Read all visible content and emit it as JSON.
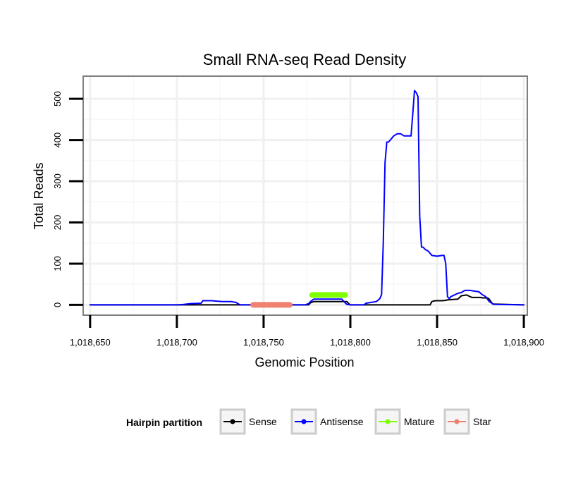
{
  "chart_data": {
    "type": "line",
    "title": "Small RNA-seq Read Density",
    "xlabel": "Genomic Position",
    "ylabel": "Total Reads",
    "xlim": [
      1018646,
      1018902
    ],
    "ylim": [
      -25,
      555
    ],
    "x_ticks": [
      1018650,
      1018700,
      1018750,
      1018800,
      1018850,
      1018900
    ],
    "x_tick_labels": [
      "1,018,650",
      "1,018,700",
      "1,018,750",
      "1,018,800",
      "1,018,850",
      "1,018,900"
    ],
    "y_ticks": [
      0,
      100,
      200,
      300,
      400,
      500
    ],
    "y_tick_labels": [
      "0",
      "100",
      "200",
      "300",
      "400",
      "500"
    ],
    "grid": true,
    "legend": {
      "title": "Hairpin partition",
      "placement": "bottom",
      "entries": [
        {
          "name": "Sense",
          "color": "#000000"
        },
        {
          "name": "Antisense",
          "color": "#0000ff"
        },
        {
          "name": "Mature",
          "color": "#7fff00"
        },
        {
          "name": "Star",
          "color": "#f08070"
        }
      ]
    },
    "series": [
      {
        "name": "Sense",
        "color": "#000000",
        "width": 2,
        "x": [
          1018650,
          1018776,
          1018777,
          1018779,
          1018798,
          1018799,
          1018800,
          1018846,
          1018847,
          1018849,
          1018853,
          1018855,
          1018856,
          1018862,
          1018864,
          1018867,
          1018868,
          1018870,
          1018875,
          1018876,
          1018879,
          1018880,
          1018881,
          1018882,
          1018900
        ],
        "y": [
          0,
          0,
          5,
          8,
          8,
          3,
          0,
          0,
          8,
          10,
          10,
          11,
          12,
          14,
          22,
          24,
          22,
          18,
          18,
          17,
          17,
          14,
          8,
          2,
          0
        ]
      },
      {
        "name": "Antisense",
        "color": "#0000ff",
        "width": 2,
        "x": [
          1018650,
          1018700,
          1018704,
          1018708,
          1018714,
          1018715,
          1018720,
          1018726,
          1018731,
          1018734,
          1018736,
          1018737,
          1018774,
          1018776,
          1018777,
          1018779,
          1018795,
          1018797,
          1018798,
          1018800,
          1018808,
          1018809,
          1018815,
          1018817,
          1018818,
          1018819,
          1018820,
          1018821,
          1018822,
          1018823,
          1018825,
          1018827,
          1018829,
          1018831,
          1018832,
          1018835,
          1018836,
          1018837,
          1018838,
          1018839,
          1018840,
          1018841,
          1018842,
          1018843,
          1018845,
          1018847,
          1018850,
          1018853,
          1018854,
          1018855,
          1018856,
          1018857,
          1018858,
          1018862,
          1018864,
          1018866,
          1018869,
          1018872,
          1018874,
          1018876,
          1018878,
          1018880,
          1018882,
          1018883,
          1018900
        ],
        "y": [
          0,
          0,
          1,
          3,
          4,
          10,
          10,
          8,
          8,
          6,
          1,
          0,
          0,
          3,
          8,
          14,
          14,
          5,
          1,
          0,
          0,
          4,
          8,
          15,
          25,
          150,
          345,
          395,
          395,
          400,
          410,
          415,
          415,
          410,
          410,
          410,
          465,
          520,
          515,
          505,
          215,
          140,
          140,
          135,
          130,
          120,
          118,
          120,
          120,
          100,
          20,
          15,
          20,
          28,
          30,
          35,
          35,
          33,
          32,
          25,
          20,
          8,
          3,
          1,
          0
        ]
      },
      {
        "name": "Mature",
        "color": "#7fff00",
        "width": 8,
        "x": [
          1018778,
          1018797
        ],
        "y": [
          24,
          24
        ]
      },
      {
        "name": "Star",
        "color": "#f08070",
        "width": 8,
        "x": [
          1018744,
          1018765
        ],
        "y": [
          0,
          0
        ]
      }
    ]
  }
}
